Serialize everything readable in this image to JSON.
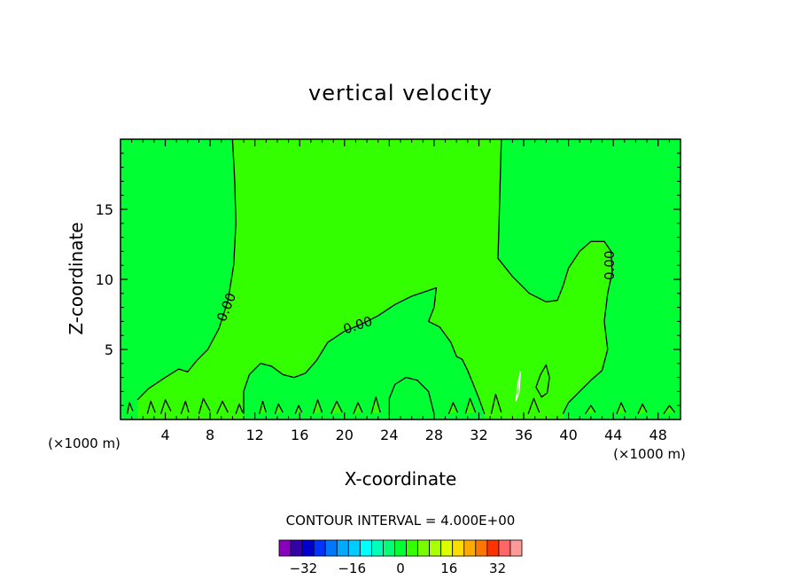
{
  "chart_data": {
    "type": "contour",
    "title": "vertical velocity",
    "xlabel": "X-coordinate",
    "ylabel": "Z-coordinate",
    "x_unit_left": "(×1000 m)",
    "x_unit_right": "(×1000 m)",
    "xlim": [
      0,
      50
    ],
    "ylim": [
      0,
      20
    ],
    "x_ticks": [
      4,
      8,
      12,
      16,
      20,
      24,
      28,
      32,
      36,
      40,
      44,
      48
    ],
    "y_ticks": [
      5,
      10,
      15
    ],
    "contour_interval_text": "CONTOUR INTERVAL = 4.000E+00",
    "contour_labels": [
      {
        "text": "0.00",
        "x": 9.5,
        "z": 8.0,
        "angle": -68
      },
      {
        "text": "0.00",
        "x": 21.2,
        "z": 6.7,
        "angle": -18
      },
      {
        "text": "0.00",
        "x": 43.7,
        "z": 11.0,
        "angle": -90
      }
    ],
    "contours": [
      [
        [
          10.0,
          20.0
        ],
        [
          10.2,
          17.0
        ],
        [
          10.3,
          14.0
        ],
        [
          10.1,
          11.0
        ],
        [
          9.6,
          8.5
        ],
        [
          8.8,
          6.5
        ],
        [
          7.8,
          5.0
        ],
        [
          6.8,
          4.2
        ],
        [
          6.0,
          3.4
        ],
        [
          5.2,
          3.6
        ],
        [
          4.0,
          3.0
        ],
        [
          2.5,
          2.2
        ],
        [
          1.5,
          1.4
        ]
      ],
      [
        [
          34.0,
          20.0
        ],
        [
          33.9,
          17.0
        ],
        [
          33.8,
          14.0
        ],
        [
          33.7,
          11.5
        ],
        [
          35.0,
          10.2
        ],
        [
          36.5,
          9.0
        ],
        [
          38.0,
          8.4
        ],
        [
          39.0,
          8.5
        ],
        [
          39.5,
          9.5
        ],
        [
          40.0,
          10.8
        ],
        [
          41.0,
          12.0
        ],
        [
          42.0,
          12.7
        ],
        [
          43.2,
          12.7
        ],
        [
          43.8,
          12.0
        ],
        [
          43.9,
          10.5
        ],
        [
          43.5,
          9.0
        ],
        [
          43.2,
          7.0
        ],
        [
          43.5,
          5.0
        ],
        [
          43.0,
          3.5
        ],
        [
          42.0,
          2.8
        ],
        [
          41.0,
          2.0
        ],
        [
          40.0,
          1.2
        ],
        [
          39.5,
          0.4
        ]
      ],
      [
        [
          11.0,
          0.4
        ],
        [
          11.0,
          2.0
        ],
        [
          11.5,
          3.2
        ],
        [
          12.5,
          4.0
        ],
        [
          13.5,
          3.8
        ],
        [
          14.5,
          3.2
        ],
        [
          15.5,
          3.0
        ],
        [
          16.5,
          3.3
        ],
        [
          17.5,
          4.2
        ],
        [
          18.5,
          5.5
        ],
        [
          20.0,
          6.3
        ],
        [
          21.5,
          6.8
        ],
        [
          23.0,
          7.4
        ],
        [
          24.5,
          8.2
        ],
        [
          26.0,
          8.8
        ],
        [
          27.5,
          9.2
        ],
        [
          28.2,
          9.4
        ],
        [
          28.0,
          8.0
        ],
        [
          27.5,
          7.0
        ],
        [
          28.5,
          6.6
        ],
        [
          29.5,
          5.5
        ],
        [
          30.0,
          4.5
        ],
        [
          30.5,
          4.3
        ],
        [
          31.0,
          3.5
        ],
        [
          31.5,
          2.5
        ],
        [
          32.0,
          1.5
        ],
        [
          32.5,
          0.4
        ]
      ],
      [
        [
          24.0,
          0.4
        ],
        [
          24.0,
          1.5
        ],
        [
          24.5,
          2.5
        ],
        [
          25.5,
          3.0
        ],
        [
          26.5,
          2.8
        ],
        [
          27.5,
          2.0
        ],
        [
          28.0,
          0.4
        ]
      ],
      [
        [
          37.1,
          2.3
        ],
        [
          37.5,
          3.2
        ],
        [
          38.0,
          3.9
        ],
        [
          38.3,
          3.0
        ],
        [
          38.1,
          1.9
        ],
        [
          37.6,
          1.6
        ],
        [
          37.1,
          2.3
        ]
      ],
      [
        [
          35.3,
          1.3
        ],
        [
          35.5,
          2.6
        ],
        [
          35.7,
          3.4
        ],
        [
          35.6,
          2.0
        ],
        [
          35.3,
          1.3
        ]
      ],
      [
        [
          0.6,
          0.4
        ],
        [
          0.8,
          1.2
        ],
        [
          1.1,
          0.6
        ]
      ],
      [
        [
          2.4,
          0.4
        ],
        [
          2.7,
          1.3
        ],
        [
          3.1,
          0.5
        ]
      ],
      [
        [
          3.6,
          0.4
        ],
        [
          4.0,
          1.4
        ],
        [
          4.5,
          0.6
        ]
      ],
      [
        [
          5.4,
          0.4
        ],
        [
          5.8,
          1.3
        ],
        [
          6.1,
          0.5
        ]
      ],
      [
        [
          7.0,
          0.4
        ],
        [
          7.4,
          1.5
        ],
        [
          8.0,
          0.6
        ]
      ],
      [
        [
          8.6,
          0.4
        ],
        [
          9.1,
          1.3
        ],
        [
          9.6,
          0.5
        ]
      ],
      [
        [
          10.3,
          0.4
        ],
        [
          10.6,
          1.1
        ],
        [
          10.9,
          0.5
        ]
      ],
      [
        [
          12.4,
          0.4
        ],
        [
          12.7,
          1.3
        ],
        [
          13.0,
          0.5
        ]
      ],
      [
        [
          13.8,
          0.4
        ],
        [
          14.1,
          1.1
        ],
        [
          14.5,
          0.5
        ]
      ],
      [
        [
          15.6,
          0.4
        ],
        [
          15.9,
          1.0
        ],
        [
          16.2,
          0.5
        ]
      ],
      [
        [
          17.2,
          0.4
        ],
        [
          17.6,
          1.4
        ],
        [
          18.0,
          0.5
        ]
      ],
      [
        [
          18.8,
          0.4
        ],
        [
          19.3,
          1.3
        ],
        [
          19.8,
          0.5
        ]
      ],
      [
        [
          20.8,
          0.4
        ],
        [
          21.2,
          1.2
        ],
        [
          21.6,
          0.5
        ]
      ],
      [
        [
          22.4,
          0.4
        ],
        [
          22.8,
          1.6
        ],
        [
          23.2,
          0.5
        ]
      ],
      [
        [
          29.3,
          0.4
        ],
        [
          29.7,
          1.2
        ],
        [
          30.1,
          0.5
        ]
      ],
      [
        [
          30.8,
          0.4
        ],
        [
          31.2,
          1.5
        ],
        [
          31.7,
          0.5
        ]
      ],
      [
        [
          33.1,
          0.4
        ],
        [
          33.5,
          1.8
        ],
        [
          34.0,
          0.5
        ]
      ],
      [
        [
          36.4,
          0.4
        ],
        [
          36.9,
          1.5
        ],
        [
          37.4,
          0.5
        ]
      ],
      [
        [
          41.5,
          0.4
        ],
        [
          42.0,
          1.0
        ],
        [
          42.4,
          0.5
        ]
      ],
      [
        [
          44.3,
          0.4
        ],
        [
          44.7,
          1.2
        ],
        [
          45.1,
          0.5
        ]
      ],
      [
        [
          46.2,
          0.4
        ],
        [
          46.6,
          1.1
        ],
        [
          47.0,
          0.5
        ]
      ],
      [
        [
          48.5,
          0.4
        ],
        [
          49.0,
          1.0
        ],
        [
          49.5,
          0.5
        ]
      ]
    ],
    "fill_regions": [
      {
        "value": 0,
        "color": "#00ff33"
      },
      {
        "value": 4,
        "color": "#33ff00"
      }
    ],
    "colorbar": {
      "colors": [
        "#8800bb",
        "#3300aa",
        "#0000cc",
        "#0033ff",
        "#0077ff",
        "#00aaff",
        "#00ccff",
        "#00ffff",
        "#00ffbb",
        "#00ff77",
        "#00ff33",
        "#33ff00",
        "#77ff00",
        "#aaff00",
        "#ddff00",
        "#ffdd00",
        "#ffaa00",
        "#ff7700",
        "#ff3300",
        "#ff6666",
        "#ff9999"
      ],
      "tick_labels": [
        "-32",
        "-16",
        "0",
        "16",
        "32"
      ],
      "tick_values": [
        -32,
        -16,
        0,
        16,
        32
      ],
      "min": -40,
      "max": 40
    }
  }
}
